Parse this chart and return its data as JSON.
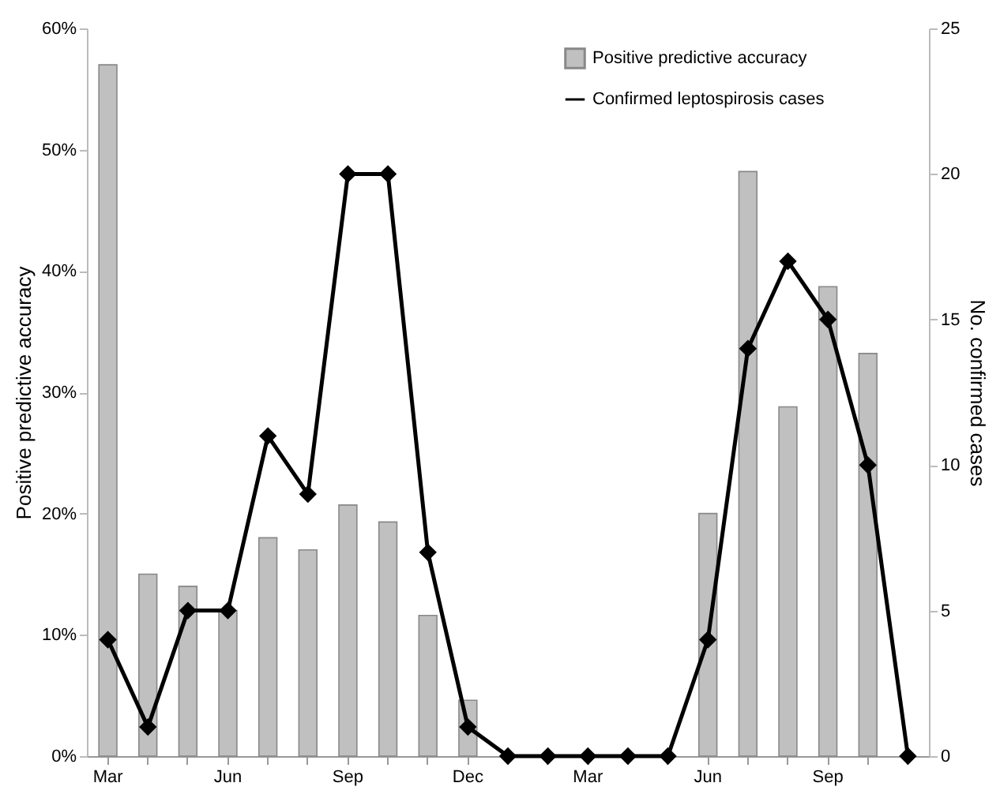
{
  "chart_data": {
    "type": "bar",
    "ylabel": "Positive predictive accuracy",
    "y2label": "No. confirmed cases",
    "categories": [
      "Mar",
      null,
      null,
      "Jun",
      null,
      null,
      "Sep",
      null,
      null,
      "Dec",
      null,
      null,
      "Mar",
      null,
      null,
      "Jun",
      null,
      null,
      "Sep",
      null,
      null
    ],
    "series": [
      {
        "name": "Positive predictive accuracy",
        "color": "#c0c0c0",
        "values": [
          57,
          15,
          14,
          12,
          18,
          17,
          20.7,
          19.3,
          11.6,
          4.6,
          null,
          null,
          null,
          null,
          null,
          20,
          48.2,
          28.8,
          38.7,
          33.2,
          null
        ]
      },
      {
        "name": "Confirmed leptospirosis cases",
        "type": "line",
        "axis": "y2",
        "color": "#000000",
        "marker": "diamond",
        "values": [
          4,
          1,
          5,
          5,
          11,
          9,
          20,
          20,
          7,
          1,
          0,
          0,
          0,
          0,
          0,
          4,
          14,
          17,
          15,
          10,
          0
        ]
      }
    ],
    "ylim": [
      0,
      60
    ],
    "yticks": [
      {
        "value": 0,
        "label": "0%"
      },
      {
        "value": 10,
        "label": "10%"
      },
      {
        "value": 20,
        "label": "20%"
      },
      {
        "value": 30,
        "label": "30%"
      },
      {
        "value": 40,
        "label": "40%"
      },
      {
        "value": 50,
        "label": "50%"
      },
      {
        "value": 60,
        "label": "60%"
      }
    ],
    "y2lim": [
      0,
      25
    ],
    "y2ticks": [
      0,
      5,
      10,
      15,
      20,
      25
    ],
    "grid": false,
    "legend": "top right"
  }
}
